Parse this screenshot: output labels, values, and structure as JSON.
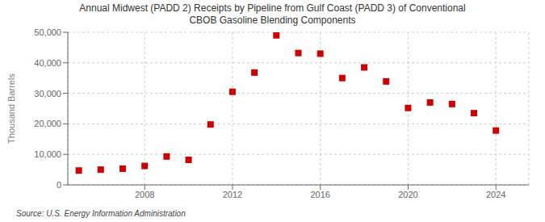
{
  "chart_data": {
    "type": "scatter",
    "title": "Annual Midwest (PADD 2) Receipts by Pipeline from Gulf Coast (PADD 3) of Conventional\nCBOB Gasoline Blending Components",
    "y_label": "Thousand Barrels",
    "annotations": [
      "Source: U.S. Energy Information Administration"
    ],
    "x": [
      2005,
      2006,
      2007,
      2008,
      2009,
      2010,
      2011,
      2012,
      2013,
      2014,
      2015,
      2016,
      2017,
      2018,
      2019,
      2020,
      2021,
      2022,
      2023,
      2024
    ],
    "values": [
      4700,
      5000,
      5300,
      6200,
      9300,
      8200,
      19800,
      30500,
      36800,
      49000,
      43200,
      43000,
      35000,
      38500,
      33900,
      25200,
      27000,
      26500,
      23500,
      17800
    ],
    "color": "#cc0000",
    "marker": "square",
    "xlim": [
      2004.5,
      2025.5
    ],
    "xticks": [
      2008,
      2012,
      2016,
      2020,
      2024
    ],
    "ylim": [
      0,
      50000
    ],
    "yticks": [
      0,
      {
        "value": 10000,
        "label": "10,000"
      },
      {
        "value": 20000,
        "label": "20,000"
      },
      {
        "value": 30000,
        "label": "30,000"
      },
      {
        "value": 40000,
        "label": "40,000"
      },
      {
        "value": 50000,
        "label": "50,000"
      }
    ],
    "grid": true
  }
}
